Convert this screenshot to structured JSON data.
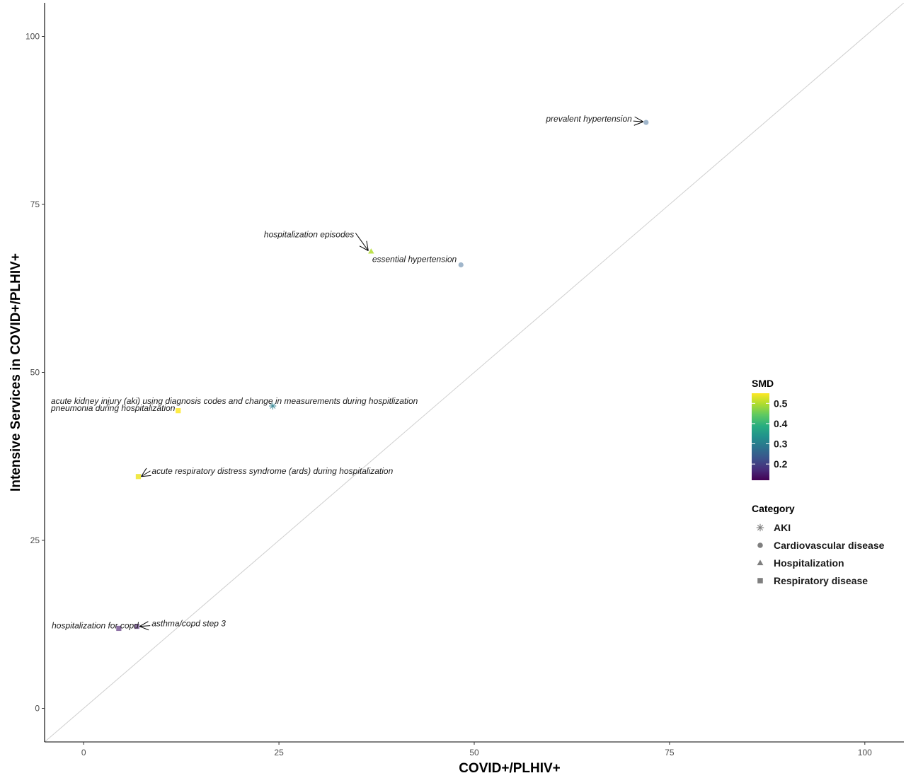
{
  "chart_data": {
    "type": "scatter",
    "xlabel": "COVID+/PLHIV+",
    "ylabel": "Intensive Services in COVID+/PLHIV+",
    "xlim": [
      -5,
      105
    ],
    "ylim": [
      -5,
      105
    ],
    "x_ticks": [
      0,
      25,
      50,
      75,
      100
    ],
    "y_ticks": [
      0,
      25,
      50,
      75,
      100
    ],
    "reference_line": "y = x",
    "grid": false,
    "legend_position": "right",
    "color_scale": {
      "title": "SMD",
      "palette": "viridis",
      "min": 0.12,
      "max": 0.55,
      "ticks": [
        0.2,
        0.3,
        0.4,
        0.5
      ],
      "tick_labels": [
        "0.2",
        "0.3",
        "0.4",
        "0.5"
      ]
    },
    "shape_legend": {
      "title": "Category",
      "entries": [
        {
          "label": "AKI",
          "shape": "asterisk"
        },
        {
          "label": "Cardiovascular disease",
          "shape": "circle"
        },
        {
          "label": "Hospitalization",
          "shape": "triangle"
        },
        {
          "label": "Respiratory disease",
          "shape": "square"
        }
      ]
    },
    "points": [
      {
        "label": "prevalent hypertension",
        "x": 72.0,
        "y": 87.2,
        "category": "Cardiovascular disease",
        "smd": 0.26
      },
      {
        "label": "hospitalization episodes",
        "x": 36.8,
        "y": 68.0,
        "category": "Hospitalization",
        "smd": 0.5
      },
      {
        "label": "essential hypertension",
        "x": 48.3,
        "y": 66.0,
        "category": "Cardiovascular disease",
        "smd": 0.27
      },
      {
        "label": "acute kidney injury (aki) using diagnosis codes and change in measurements during hospitlization",
        "x": 24.2,
        "y": 45.0,
        "category": "AKI",
        "smd": 0.3
      },
      {
        "label": "pneumonia during hospitalization",
        "x": 12.1,
        "y": 44.3,
        "category": "Respiratory disease",
        "smd": 0.55
      },
      {
        "label": "acute respiratory distress syndrome (ards) during hospitalization",
        "x": 7.0,
        "y": 34.5,
        "category": "Respiratory disease",
        "smd": 0.54
      },
      {
        "label": "hospitalization for copd",
        "x": 4.5,
        "y": 11.9,
        "category": "Respiratory disease",
        "smd": 0.15
      },
      {
        "label": "asthma/copd step 3",
        "x": 6.8,
        "y": 12.2,
        "category": "Respiratory disease",
        "smd": 0.12
      }
    ]
  }
}
